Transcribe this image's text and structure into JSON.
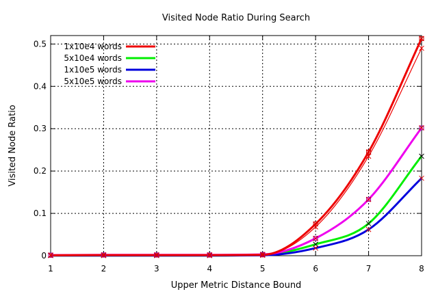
{
  "chart_data": {
    "type": "line",
    "title": "Visited Node Ratio During Search",
    "xlabel": "Upper Metric Distance Bound",
    "ylabel": "Visited Node Ratio",
    "xlim": [
      1,
      8
    ],
    "ylim": [
      0,
      0.52
    ],
    "x_ticks": [
      1,
      2,
      3,
      4,
      5,
      6,
      7,
      8
    ],
    "y_ticks": [
      0,
      0.1,
      0.2,
      0.3,
      0.4,
      0.5
    ],
    "y_tick_labels": [
      "0",
      "0.1",
      "0.2",
      "0.3",
      "0.4",
      "0.5"
    ],
    "grid": true,
    "legend_position": "top-left",
    "x": [
      1,
      2,
      3,
      4,
      5,
      6,
      7,
      8
    ],
    "series": [
      {
        "name": "1x10e4 words",
        "color": "#ee0000",
        "values": [
          0.001,
          0.0015,
          0.0015,
          0.0015,
          0.002,
          0.075,
          0.245,
          0.513
        ],
        "values_alt": [
          0.001,
          0.0015,
          0.0015,
          0.0015,
          0.002,
          0.068,
          0.235,
          0.49
        ]
      },
      {
        "name": "5x10e4 words",
        "color": "#00ee00",
        "values": [
          0.0005,
          0.0005,
          0.0005,
          0.0005,
          0.002,
          0.027,
          0.076,
          0.235
        ]
      },
      {
        "name": "1x10e5 words",
        "color": "#0000dd",
        "values": [
          0.0005,
          0.0005,
          0.0005,
          0.0005,
          0.001,
          0.018,
          0.062,
          0.183
        ]
      },
      {
        "name": "5x10e5 words",
        "color": "#ee00ee",
        "values": [
          0.0015,
          0.002,
          0.002,
          0.002,
          0.003,
          0.041,
          0.133,
          0.302
        ]
      }
    ]
  }
}
